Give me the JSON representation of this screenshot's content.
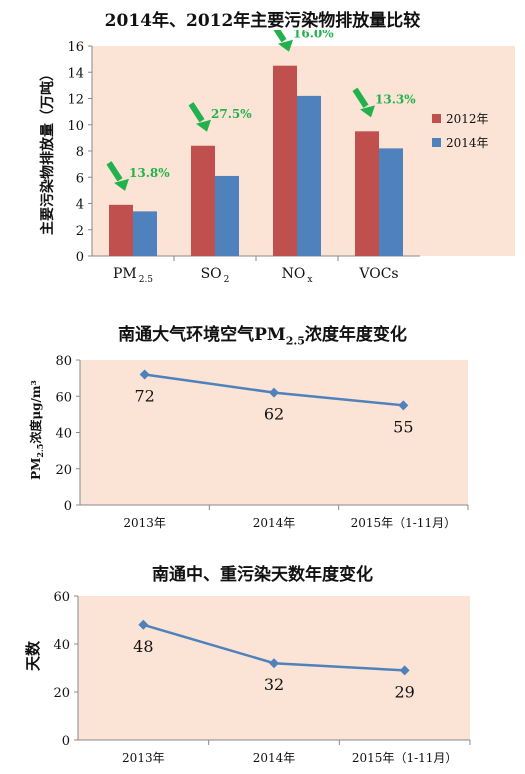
{
  "chart_data": [
    {
      "type": "bar",
      "title": "2014年、2012年主要污染物排放量比较",
      "ylabel": "主要污染物排放量（万吨）",
      "xlabel": "",
      "ylim": [
        0,
        16
      ],
      "yticks": [
        "0",
        "2",
        "4",
        "6",
        "8",
        "10",
        "12",
        "14",
        "16"
      ],
      "grid": false,
      "legend": "right",
      "categories": [
        {
          "main": "PM",
          "sub": "2.5"
        },
        {
          "main": "SO",
          "sub": "2"
        },
        {
          "main": "NO",
          "sub": "x"
        },
        {
          "main": "VOCs",
          "sub": ""
        }
      ],
      "series": [
        {
          "name": "2012年",
          "color": "#c0504d",
          "values": [
            3.9,
            8.4,
            14.5,
            9.5
          ]
        },
        {
          "name": "2014年",
          "color": "#4f81bd",
          "values": [
            3.4,
            6.1,
            12.2,
            8.2
          ]
        }
      ],
      "annotations": [
        "13.8%",
        "27.5%",
        "16.0%",
        "13.3%"
      ],
      "annotation_color": "#22b14c",
      "plot_background": "#fbe4d5"
    },
    {
      "type": "line",
      "title": "南通大气环境空气PM",
      "title_sub": "2.5",
      "title_rest": "浓度年度变化",
      "ylabel_main": "PM",
      "ylabel_sub": "2.5",
      "ylabel_rest": "浓度μg/m³",
      "ylim": [
        0,
        80
      ],
      "yticks": [
        "0",
        "20",
        "40",
        "60",
        "80"
      ],
      "categories": [
        "2013年",
        "2014年",
        "2015年（1-11月）"
      ],
      "values": [
        72,
        62,
        55
      ],
      "data_labels": [
        "72",
        "62",
        "55"
      ],
      "color": "#4f81bd",
      "plot_background": "#fbe4d5"
    },
    {
      "type": "line",
      "title": "南通中、重污染天数年度变化",
      "ylabel": "天数",
      "ylim": [
        0,
        60
      ],
      "yticks": [
        "0",
        "20",
        "40",
        "60"
      ],
      "categories": [
        "2013年",
        "2014年",
        "2015年（1-11月）"
      ],
      "values": [
        48,
        32,
        29
      ],
      "data_labels": [
        "48",
        "32",
        "29"
      ],
      "color": "#4f81bd",
      "plot_background": "#fbe4d5"
    }
  ]
}
